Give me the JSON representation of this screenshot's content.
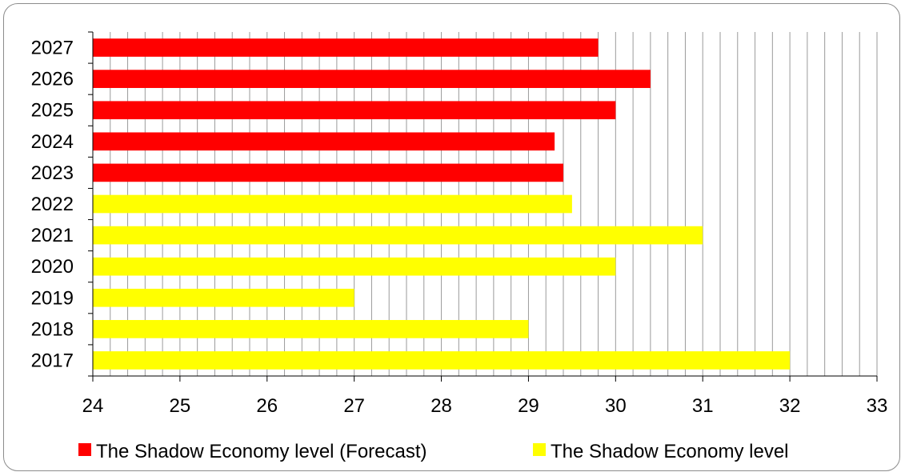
{
  "chart_data": {
    "type": "bar",
    "orientation": "horizontal",
    "categories": [
      "2017",
      "2018",
      "2019",
      "2020",
      "2021",
      "2022",
      "2023",
      "2024",
      "2025",
      "2026",
      "2027"
    ],
    "series": [
      {
        "name": "The Shadow Economy level",
        "color": "#ffff00",
        "values": [
          32.0,
          29.0,
          27.0,
          30.0,
          31.0,
          29.5,
          null,
          null,
          null,
          null,
          null
        ]
      },
      {
        "name": "The Shadow Economy level (Forecast)",
        "color": "#ff0000",
        "values": [
          null,
          null,
          null,
          null,
          null,
          null,
          29.4,
          29.3,
          30.0,
          30.4,
          29.8
        ]
      }
    ],
    "xlim": [
      24,
      33
    ],
    "x_ticks": [
      "24",
      "25",
      "26",
      "27",
      "28",
      "29",
      "30",
      "31",
      "32",
      "33"
    ],
    "xlabel": "",
    "ylabel": "",
    "title": "",
    "grid": "vertical minor gridlines",
    "legend": {
      "placement": "bottom",
      "entries": [
        {
          "label": "The Shadow Economy level (Forecast)",
          "color": "#ff0000"
        },
        {
          "label": "The Shadow Economy level",
          "color": "#ffff00"
        }
      ]
    }
  }
}
